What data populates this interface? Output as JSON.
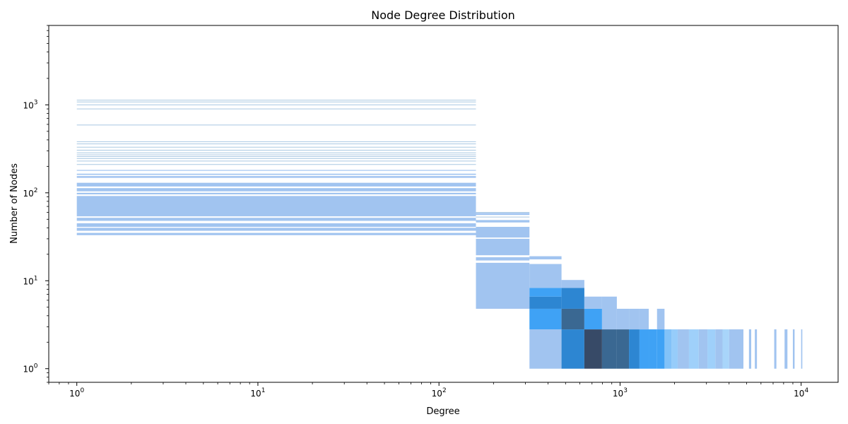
{
  "chart_data": {
    "type": "heatmap",
    "title": "Node Degree Distribution",
    "xlabel": "Degree",
    "ylabel": "Number of Nodes",
    "xscale": "log",
    "yscale": "log",
    "xlim": [
      0.7,
      16000
    ],
    "ylim": [
      0.7,
      8000
    ],
    "grid": false,
    "x_ticks": [
      {
        "base": "10",
        "exp": "0",
        "value": 1
      },
      {
        "base": "10",
        "exp": "1",
        "value": 10
      },
      {
        "base": "10",
        "exp": "2",
        "value": 100
      },
      {
        "base": "10",
        "exp": "3",
        "value": 1000
      },
      {
        "base": "10",
        "exp": "4",
        "value": 10000
      }
    ],
    "y_ticks": [
      {
        "base": "10",
        "exp": "0",
        "value": 1
      },
      {
        "base": "10",
        "exp": "1",
        "value": 10
      },
      {
        "base": "10",
        "exp": "2",
        "value": 100
      },
      {
        "base": "10",
        "exp": "3",
        "value": 1000
      }
    ],
    "colors": {
      "light": "#a1c4f0",
      "mid": "#3fa2f5",
      "strong": "#2d86d2",
      "dark": "#3a6892",
      "darkest": "#374a67",
      "line": "#a9c8e2"
    },
    "cells": [
      {
        "x0": 1,
        "x1": 160,
        "y0": 33,
        "y1": 35,
        "c": "light"
      },
      {
        "x0": 1,
        "x1": 160,
        "y0": 37,
        "y1": 40,
        "c": "light"
      },
      {
        "x0": 1,
        "x1": 160,
        "y0": 41,
        "y1": 45,
        "c": "light"
      },
      {
        "x0": 1,
        "x1": 160,
        "y0": 48,
        "y1": 52,
        "c": "light"
      },
      {
        "x0": 1,
        "x1": 160,
        "y0": 54,
        "y1": 92,
        "c": "light"
      },
      {
        "x0": 1,
        "x1": 160,
        "y0": 96,
        "y1": 100,
        "c": "light"
      },
      {
        "x0": 1,
        "x1": 160,
        "y0": 104,
        "y1": 113,
        "c": "light"
      },
      {
        "x0": 1,
        "x1": 160,
        "y0": 118,
        "y1": 130,
        "c": "light"
      },
      {
        "x0": 1,
        "x1": 160,
        "y0": 148,
        "y1": 155,
        "c": "light"
      },
      {
        "x0": 1,
        "x1": 160,
        "y0": 160,
        "y1": 165,
        "c": "light"
      },
      {
        "x0": 1,
        "x1": 160,
        "y0": 178,
        "y1": 182,
        "c": "light"
      },
      {
        "x0": 160,
        "x1": 316,
        "y0": 4.8,
        "y1": 16,
        "c": "light"
      },
      {
        "x0": 160,
        "x1": 316,
        "y0": 17,
        "y1": 18.5,
        "c": "light"
      },
      {
        "x0": 160,
        "x1": 316,
        "y0": 19.5,
        "y1": 30,
        "c": "light"
      },
      {
        "x0": 160,
        "x1": 316,
        "y0": 31,
        "y1": 41,
        "c": "light"
      },
      {
        "x0": 160,
        "x1": 316,
        "y0": 46,
        "y1": 49,
        "c": "light"
      },
      {
        "x0": 160,
        "x1": 316,
        "y0": 56,
        "y1": 59,
        "c": "light"
      },
      {
        "x0": 316,
        "x1": 475,
        "y0": 1,
        "y1": 2.8,
        "c": "light"
      },
      {
        "x0": 316,
        "x1": 475,
        "y0": 2.8,
        "y1": 4.8,
        "c": "mid"
      },
      {
        "x0": 316,
        "x1": 475,
        "y0": 4.8,
        "y1": 6.6,
        "c": "strong"
      },
      {
        "x0": 316,
        "x1": 475,
        "y0": 6.6,
        "y1": 8.3,
        "c": "mid"
      },
      {
        "x0": 316,
        "x1": 475,
        "y0": 8.3,
        "y1": 15.5,
        "c": "light"
      },
      {
        "x0": 316,
        "x1": 475,
        "y0": 17.5,
        "y1": 19,
        "c": "light"
      },
      {
        "x0": 475,
        "x1": 635,
        "y0": 1,
        "y1": 2.8,
        "c": "strong"
      },
      {
        "x0": 475,
        "x1": 635,
        "y0": 2.8,
        "y1": 4.8,
        "c": "dark"
      },
      {
        "x0": 475,
        "x1": 635,
        "y0": 4.8,
        "y1": 8.3,
        "c": "strong"
      },
      {
        "x0": 475,
        "x1": 635,
        "y0": 8.3,
        "y1": 10.2,
        "c": "light"
      },
      {
        "x0": 635,
        "x1": 795,
        "y0": 1,
        "y1": 2.8,
        "c": "darkest"
      },
      {
        "x0": 635,
        "x1": 795,
        "y0": 2.8,
        "y1": 4.8,
        "c": "mid"
      },
      {
        "x0": 635,
        "x1": 795,
        "y0": 4.8,
        "y1": 6.6,
        "c": "light"
      },
      {
        "x0": 795,
        "x1": 960,
        "y0": 1,
        "y1": 2.8,
        "c": "dark"
      },
      {
        "x0": 795,
        "x1": 960,
        "y0": 2.8,
        "y1": 6.6,
        "c": "light"
      },
      {
        "x0": 960,
        "x1": 1120,
        "y0": 1,
        "y1": 2.8,
        "c": "dark"
      },
      {
        "x0": 960,
        "x1": 1120,
        "y0": 2.8,
        "y1": 4.8,
        "c": "light"
      },
      {
        "x0": 1120,
        "x1": 1280,
        "y0": 1,
        "y1": 2.8,
        "c": "strong"
      },
      {
        "x0": 1120,
        "x1": 1280,
        "y0": 2.8,
        "y1": 4.8,
        "c": "light"
      },
      {
        "x0": 1280,
        "x1": 1440,
        "y0": 1,
        "y1": 2.8,
        "c": "mid"
      },
      {
        "x0": 1280,
        "x1": 1440,
        "y0": 2.8,
        "y1": 4.8,
        "c": "light"
      },
      {
        "x0": 1440,
        "x1": 1600,
        "y0": 1,
        "y1": 2.8,
        "c": "mid"
      },
      {
        "x0": 1600,
        "x1": 1760,
        "y0": 1,
        "y1": 2.8,
        "c": "mid"
      },
      {
        "x0": 1600,
        "x1": 1760,
        "y0": 2.8,
        "y1": 4.8,
        "c": "light"
      },
      {
        "x0": 1760,
        "x1": 1920,
        "y0": 1,
        "y1": 2.8,
        "c": "mid",
        "o": 0.65
      },
      {
        "x0": 1920,
        "x1": 2080,
        "y0": 1,
        "y1": 2.8,
        "c": "mid",
        "o": 0.55
      },
      {
        "x0": 2080,
        "x1": 2400,
        "y0": 1,
        "y1": 2.8,
        "c": "light"
      },
      {
        "x0": 2400,
        "x1": 2720,
        "y0": 1,
        "y1": 2.8,
        "c": "mid",
        "o": 0.5
      },
      {
        "x0": 2720,
        "x1": 3040,
        "y0": 1,
        "y1": 2.8,
        "c": "light"
      },
      {
        "x0": 3040,
        "x1": 3360,
        "y0": 1,
        "y1": 2.8,
        "c": "mid",
        "o": 0.5
      },
      {
        "x0": 3360,
        "x1": 3680,
        "y0": 1,
        "y1": 2.8,
        "c": "light"
      },
      {
        "x0": 3680,
        "x1": 4000,
        "y0": 1,
        "y1": 2.8,
        "c": "mid",
        "o": 0.45
      },
      {
        "x0": 4000,
        "x1": 4800,
        "y0": 1,
        "y1": 2.8,
        "c": "light"
      },
      {
        "x0": 5150,
        "x1": 5300,
        "y0": 1,
        "y1": 2.8,
        "c": "light"
      },
      {
        "x0": 5550,
        "x1": 5700,
        "y0": 1,
        "y1": 2.8,
        "c": "light"
      },
      {
        "x0": 7100,
        "x1": 7300,
        "y0": 1,
        "y1": 2.8,
        "c": "light"
      },
      {
        "x0": 8100,
        "x1": 8400,
        "y0": 1,
        "y1": 2.8,
        "c": "light"
      },
      {
        "x0": 9000,
        "x1": 9200,
        "y0": 1,
        "y1": 2.8,
        "c": "light"
      },
      {
        "x0": 10000,
        "x1": 10150,
        "y0": 1,
        "y1": 2.8,
        "c": "light"
      }
    ],
    "hlines": [
      {
        "x0": 1,
        "x1": 160,
        "y": 210
      },
      {
        "x0": 1,
        "x1": 160,
        "y": 230
      },
      {
        "x0": 1,
        "x1": 160,
        "y": 245
      },
      {
        "x0": 1,
        "x1": 160,
        "y": 258
      },
      {
        "x0": 1,
        "x1": 160,
        "y": 270
      },
      {
        "x0": 1,
        "x1": 160,
        "y": 285
      },
      {
        "x0": 1,
        "x1": 160,
        "y": 305
      },
      {
        "x0": 1,
        "x1": 160,
        "y": 330
      },
      {
        "x0": 1,
        "x1": 160,
        "y": 360
      },
      {
        "x0": 1,
        "x1": 160,
        "y": 380
      },
      {
        "x0": 1,
        "x1": 160,
        "y": 590
      },
      {
        "x0": 1,
        "x1": 160,
        "y": 900
      },
      {
        "x0": 1,
        "x1": 160,
        "y": 1000
      },
      {
        "x0": 1,
        "x1": 160,
        "y": 1080
      },
      {
        "x0": 1,
        "x1": 160,
        "y": 1130
      },
      {
        "x0": 160,
        "x1": 316,
        "y": 53
      },
      {
        "x0": 160,
        "x1": 316,
        "y": 60
      }
    ]
  }
}
